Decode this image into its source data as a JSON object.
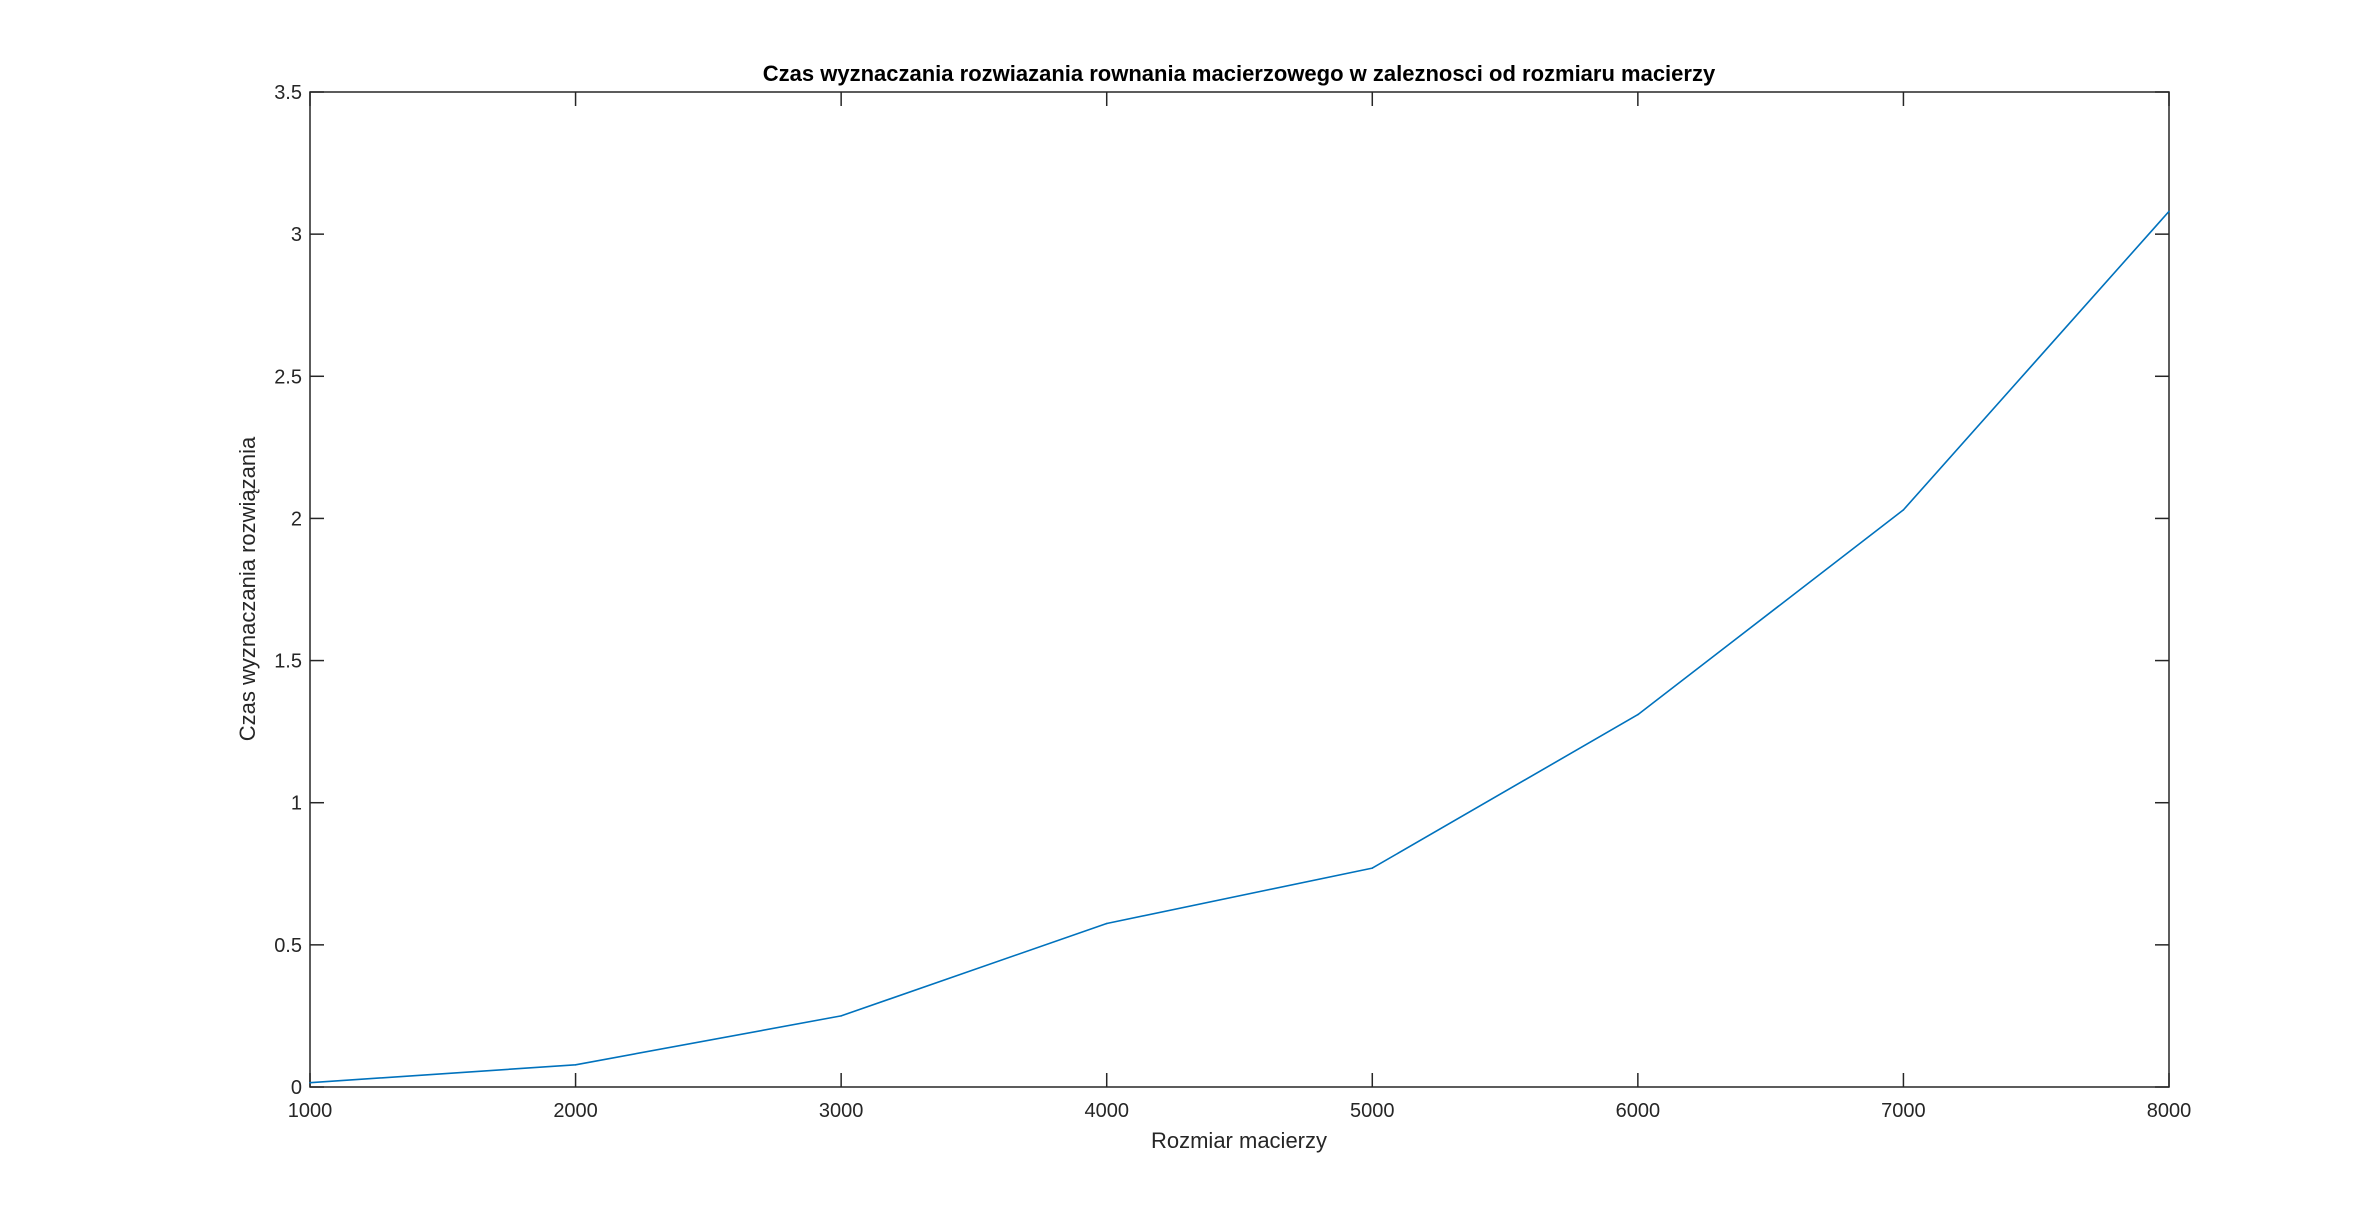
{
  "chart_data": {
    "type": "line",
    "title": "Czas wyznaczania rozwiazania rownania macierzowego w zaleznosci od rozmiaru macierzy",
    "xlabel": "Rozmiar macierzy",
    "ylabel": "Czas wyznaczania rozwiązania",
    "xlim": [
      1000,
      8000
    ],
    "ylim": [
      0,
      3.5
    ],
    "xticks": [
      "1000",
      "2000",
      "3000",
      "4000",
      "5000",
      "6000",
      "7000",
      "8000"
    ],
    "yticks": [
      "0",
      "0.5",
      "1",
      "1.5",
      "2",
      "2.5",
      "3",
      "3.5"
    ],
    "grid": false,
    "series": [
      {
        "color": "#0072BD",
        "x": [
          1000,
          2000,
          3000,
          4000,
          5000,
          6000,
          7000,
          8000
        ],
        "y": [
          0.015,
          0.078,
          0.25,
          0.575,
          0.77,
          1.31,
          2.03,
          3.08
        ]
      }
    ]
  }
}
